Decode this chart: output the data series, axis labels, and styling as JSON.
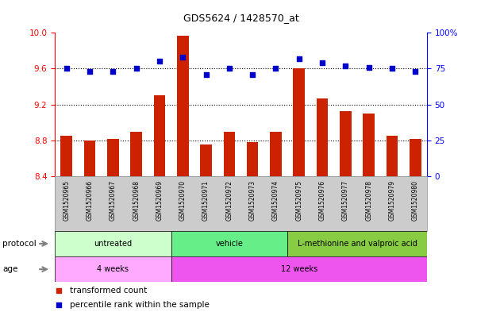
{
  "title": "GDS5624 / 1428570_at",
  "samples": [
    "GSM1520965",
    "GSM1520966",
    "GSM1520967",
    "GSM1520968",
    "GSM1520969",
    "GSM1520970",
    "GSM1520971",
    "GSM1520972",
    "GSM1520973",
    "GSM1520974",
    "GSM1520975",
    "GSM1520976",
    "GSM1520977",
    "GSM1520978",
    "GSM1520979",
    "GSM1520980"
  ],
  "bar_values": [
    8.85,
    8.8,
    8.82,
    8.9,
    9.3,
    9.97,
    8.75,
    8.9,
    8.78,
    8.9,
    9.6,
    9.27,
    9.13,
    9.1,
    8.85,
    8.82
  ],
  "percentile_values": [
    75,
    73,
    73,
    75,
    80,
    83,
    71,
    75,
    71,
    75,
    82,
    79,
    77,
    76,
    75,
    73
  ],
  "bar_color": "#cc2200",
  "percentile_color": "#0000cc",
  "ylim_left": [
    8.4,
    10.0
  ],
  "ylim_right": [
    0,
    100
  ],
  "yticks_left": [
    8.4,
    8.8,
    9.2,
    9.6,
    10.0
  ],
  "yticks_right": [
    0,
    25,
    50,
    75,
    100
  ],
  "ytick_labels_right": [
    "0",
    "25",
    "50",
    "75",
    "100%"
  ],
  "grid_lines": [
    8.8,
    9.2,
    9.6
  ],
  "protocol_groups": [
    {
      "label": "untreated",
      "start": 0,
      "end": 5,
      "color": "#ccffcc"
    },
    {
      "label": "vehicle",
      "start": 5,
      "end": 10,
      "color": "#66ee88"
    },
    {
      "label": "L-methionine and valproic acid",
      "start": 10,
      "end": 16,
      "color": "#88cc44"
    }
  ],
  "age_groups": [
    {
      "label": "4 weeks",
      "start": 0,
      "end": 5,
      "color": "#ffaaff"
    },
    {
      "label": "12 weeks",
      "start": 5,
      "end": 16,
      "color": "#ee55ee"
    }
  ],
  "protocol_label": "protocol",
  "age_label": "age",
  "legend_bar_label": "transformed count",
  "legend_pct_label": "percentile rank within the sample",
  "background_color": "#ffffff",
  "plot_area_bg": "#ffffff",
  "label_box_color": "#cccccc",
  "n_samples": 16
}
